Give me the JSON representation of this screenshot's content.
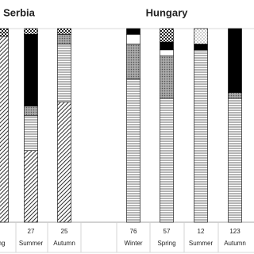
{
  "chart_data": {
    "type": "bar",
    "stacked": true,
    "panel_titles": [
      "Serbia",
      "Hungary"
    ],
    "categories": [
      "ng",
      "Summer",
      "Autumn",
      "Winter",
      "Spring",
      "Summer",
      "Autumn"
    ],
    "n": [
      null,
      27,
      25,
      76,
      57,
      12,
      123
    ],
    "ylim": [
      0,
      100
    ],
    "series": [
      {
        "pattern": "diagonal",
        "color": "#333333",
        "values": [
          96,
          37,
          62,
          0,
          0,
          0,
          0
        ]
      },
      {
        "pattern": "horizontal",
        "color": "#444444",
        "values": [
          0,
          18,
          30,
          74,
          64,
          89,
          64
        ]
      },
      {
        "pattern": "graydots",
        "color": "#777777",
        "values": [
          0,
          5,
          5,
          18,
          22,
          0,
          3
        ]
      },
      {
        "pattern": "white",
        "color": "#ffffff",
        "values": [
          0,
          0,
          0,
          5,
          3,
          0,
          0
        ]
      },
      {
        "pattern": "black",
        "color": "#000000",
        "values": [
          0,
          37,
          0,
          3,
          4,
          3,
          33
        ]
      },
      {
        "pattern": "checker",
        "color": "#222222",
        "values": [
          4,
          3,
          3,
          0,
          7,
          0,
          0
        ]
      },
      {
        "pattern": "lightdots",
        "color": "#555555",
        "values": [
          0,
          0,
          0,
          0,
          0,
          8,
          0
        ]
      }
    ]
  }
}
